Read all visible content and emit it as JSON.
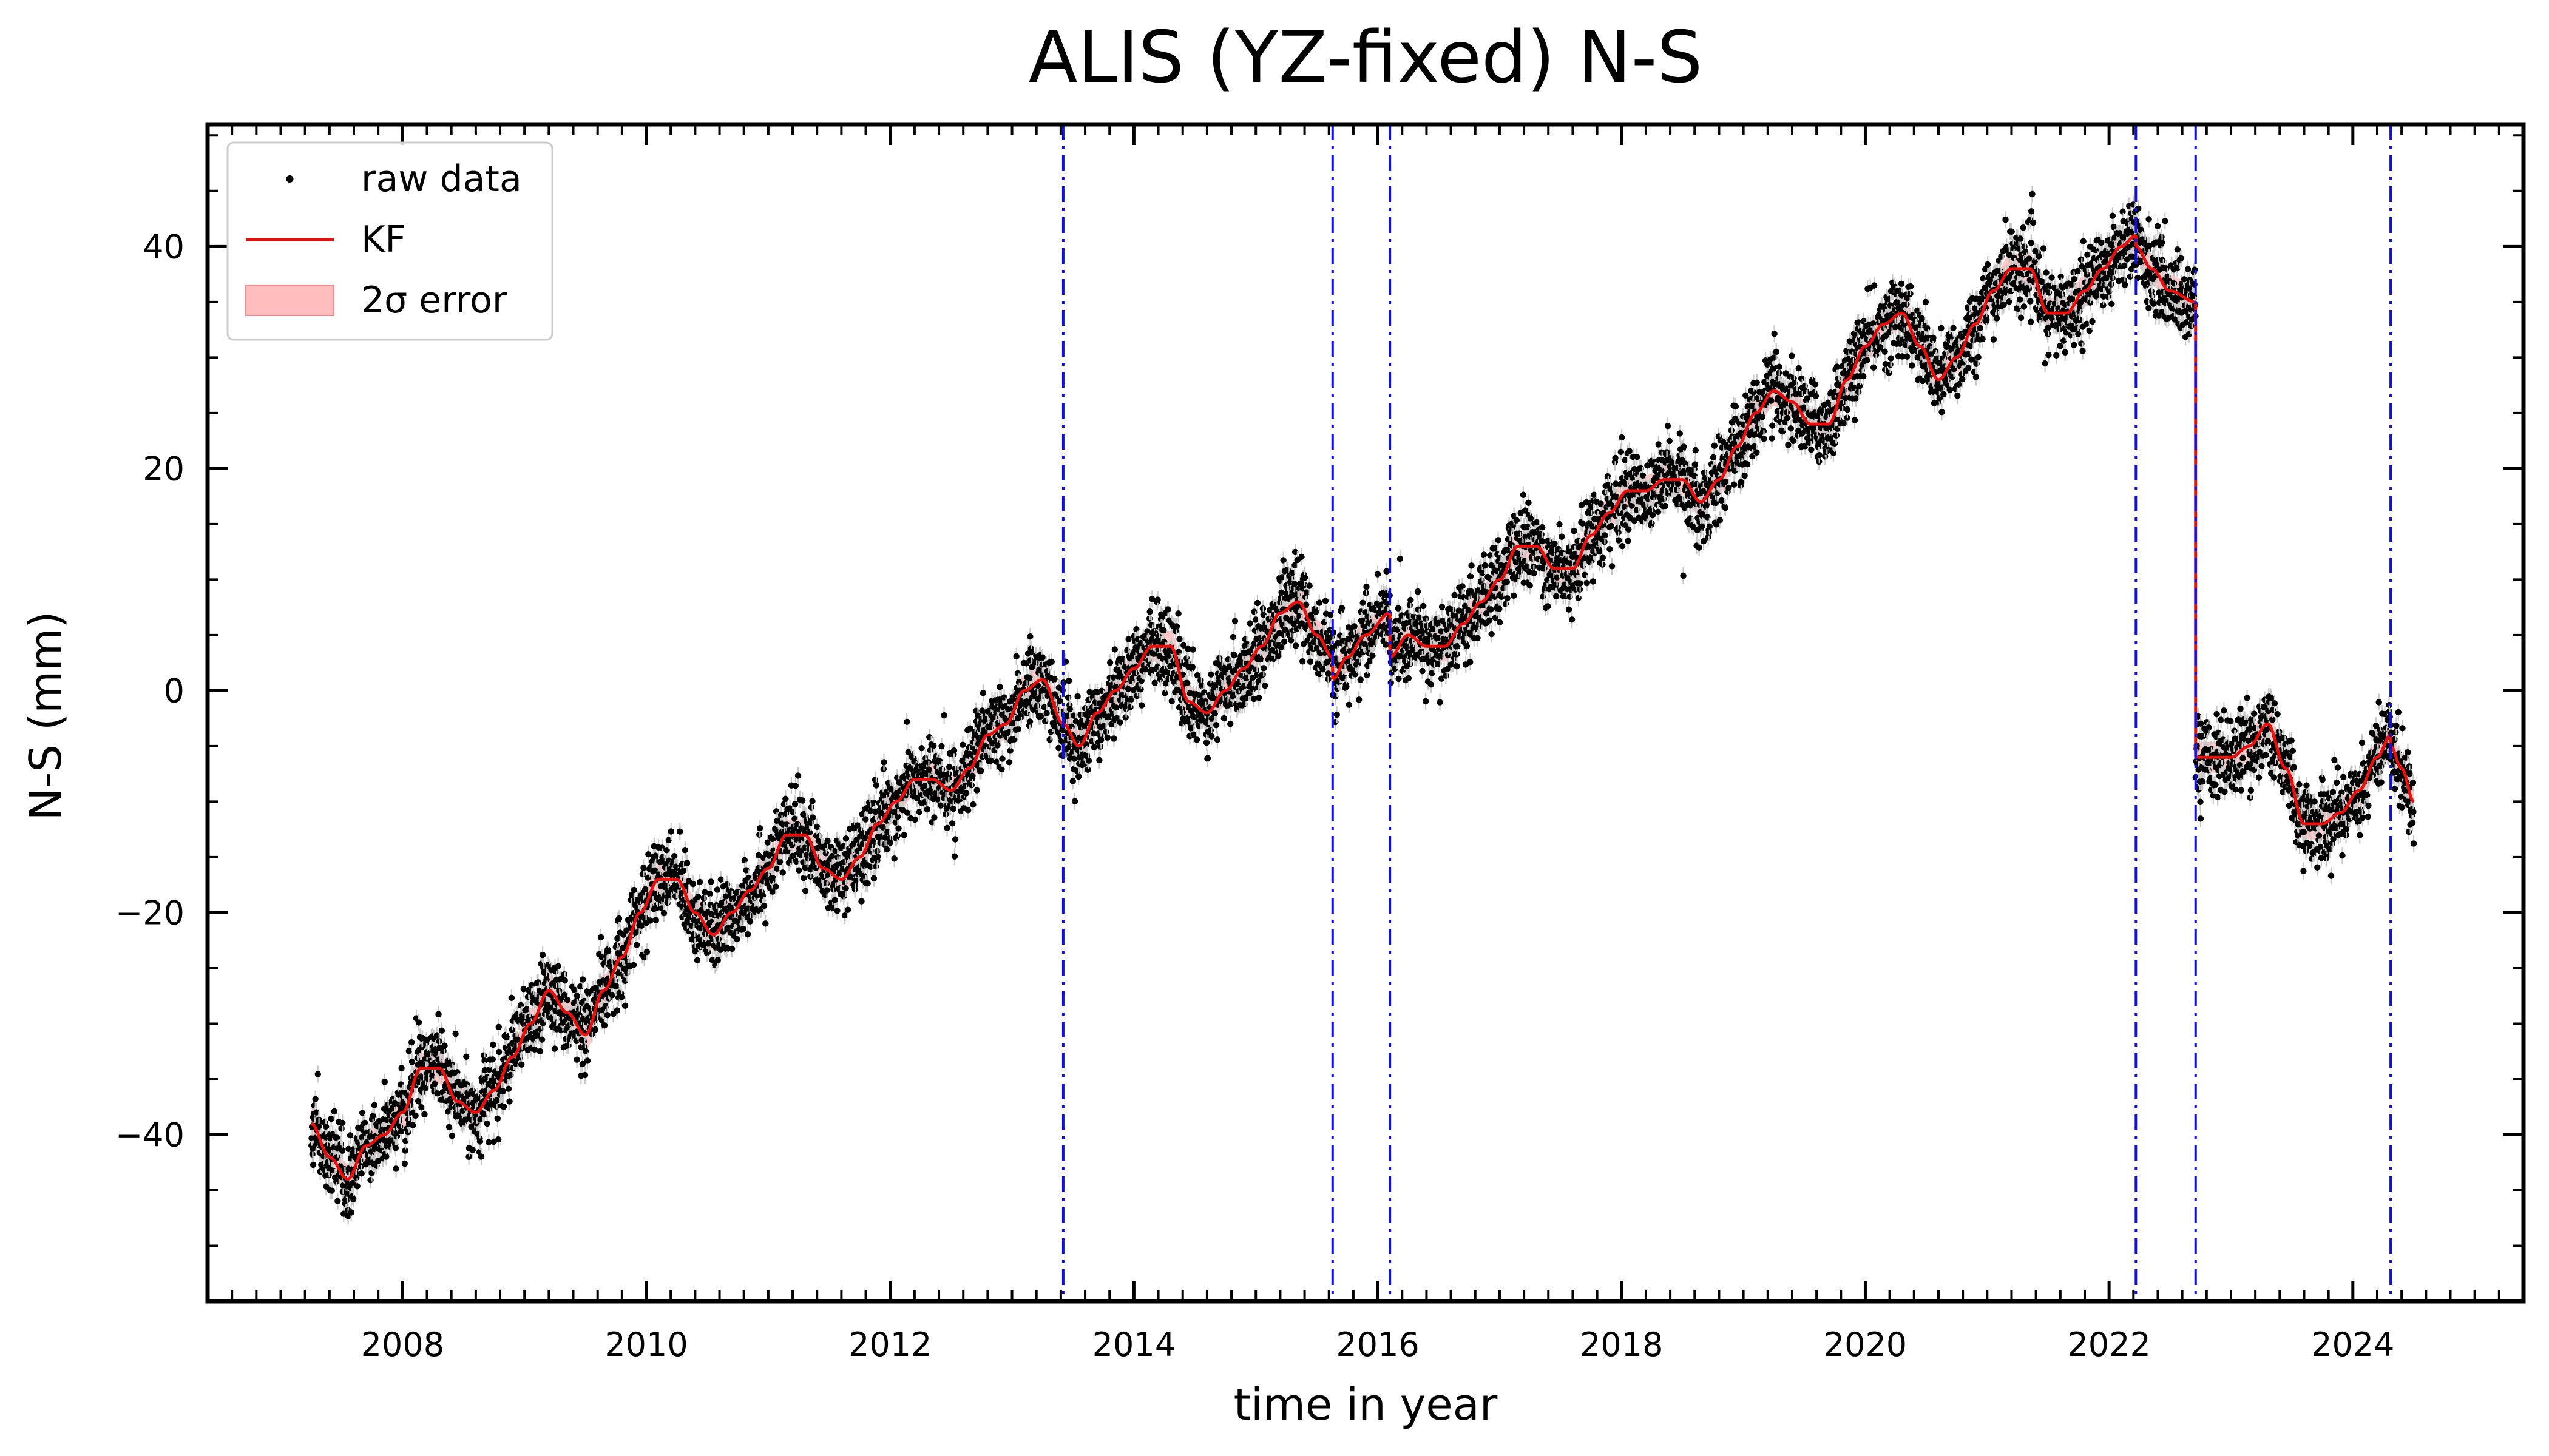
{
  "chart_data": {
    "type": "scatter",
    "title": "ALIS (YZ-fixed) N-S",
    "xlabel": "time in year",
    "ylabel": "N-S (mm)",
    "xlim": [
      2006.4,
      2025.4
    ],
    "ylim": [
      -55,
      51
    ],
    "x_ticks": [
      2008,
      2010,
      2012,
      2014,
      2016,
      2018,
      2020,
      2022,
      2024
    ],
    "x_tick_labels": [
      "2008",
      "2010",
      "2012",
      "2014",
      "2016",
      "2018",
      "2020",
      "2022",
      "2024"
    ],
    "y_ticks": [
      -40,
      -20,
      0,
      20,
      40
    ],
    "y_tick_labels": [
      "−40",
      "−20",
      "0",
      "20",
      "40"
    ],
    "legend_position": "upper-left",
    "legend": [
      {
        "label": "raw data",
        "marker": "dot"
      },
      {
        "label": "KF",
        "marker": "line"
      },
      {
        "label": "2σ error",
        "marker": "patch"
      }
    ],
    "event_lines_x": [
      2013.42,
      2015.63,
      2016.1,
      2022.22,
      2022.71,
      2024.31
    ],
    "raw_data_scatter_sd_mm": 1.8,
    "kf_sigma_mm": 0.7,
    "kf_series": {
      "name": "KF",
      "x": [
        2007.25,
        2007.4,
        2007.55,
        2007.7,
        2007.85,
        2008.0,
        2008.15,
        2008.3,
        2008.45,
        2008.6,
        2008.75,
        2008.9,
        2009.05,
        2009.2,
        2009.35,
        2009.5,
        2009.65,
        2009.8,
        2009.95,
        2010.1,
        2010.25,
        2010.4,
        2010.55,
        2010.7,
        2010.85,
        2011.0,
        2011.15,
        2011.3,
        2011.45,
        2011.6,
        2011.75,
        2011.9,
        2012.05,
        2012.2,
        2012.35,
        2012.5,
        2012.65,
        2012.8,
        2012.95,
        2013.1,
        2013.25,
        2013.42,
        2013.42,
        2013.55,
        2013.7,
        2013.85,
        2014.0,
        2014.15,
        2014.3,
        2014.45,
        2014.6,
        2014.75,
        2014.9,
        2015.05,
        2015.2,
        2015.35,
        2015.5,
        2015.63,
        2015.63,
        2015.75,
        2015.9,
        2016.1,
        2016.1,
        2016.25,
        2016.4,
        2016.55,
        2016.7,
        2016.85,
        2017.0,
        2017.15,
        2017.3,
        2017.45,
        2017.6,
        2017.75,
        2017.9,
        2018.05,
        2018.2,
        2018.35,
        2018.5,
        2018.65,
        2018.8,
        2018.95,
        2019.1,
        2019.25,
        2019.4,
        2019.55,
        2019.7,
        2019.85,
        2020.0,
        2020.15,
        2020.3,
        2020.45,
        2020.6,
        2020.75,
        2020.9,
        2021.05,
        2021.2,
        2021.35,
        2021.5,
        2021.65,
        2021.8,
        2021.95,
        2022.1,
        2022.22,
        2022.22,
        2022.35,
        2022.5,
        2022.71,
        2022.71,
        2022.85,
        2023.0,
        2023.15,
        2023.3,
        2023.45,
        2023.6,
        2023.75,
        2023.9,
        2024.05,
        2024.2,
        2024.31,
        2024.31,
        2024.4,
        2024.5
      ],
      "y": [
        -39,
        -42,
        -44,
        -41,
        -40,
        -38,
        -34,
        -34,
        -37,
        -38,
        -36,
        -33,
        -30,
        -27,
        -29,
        -31,
        -27,
        -24,
        -20,
        -17,
        -17,
        -20,
        -22,
        -20,
        -18,
        -16,
        -13,
        -13,
        -16,
        -17,
        -15,
        -12,
        -10,
        -8,
        -8,
        -9,
        -7,
        -4,
        -3,
        0,
        1,
        -3,
        -3,
        -5,
        -2,
        0,
        2,
        4,
        4,
        -1,
        -2,
        0,
        2,
        4,
        7,
        8,
        5,
        3,
        1,
        3,
        5,
        7,
        3,
        5,
        4,
        4,
        6,
        8,
        10,
        13,
        13,
        11,
        11,
        14,
        16,
        18,
        18,
        19,
        19,
        17,
        19,
        22,
        25,
        27,
        26,
        24,
        24,
        28,
        31,
        33,
        34,
        31,
        28,
        30,
        33,
        36,
        38,
        38,
        34,
        34,
        36,
        38,
        40,
        41,
        40,
        38,
        36,
        35,
        -6,
        -6,
        -6,
        -5,
        -3,
        -7,
        -12,
        -12,
        -11,
        -9,
        -6,
        -4,
        -5,
        -7,
        -10
      ]
    }
  }
}
